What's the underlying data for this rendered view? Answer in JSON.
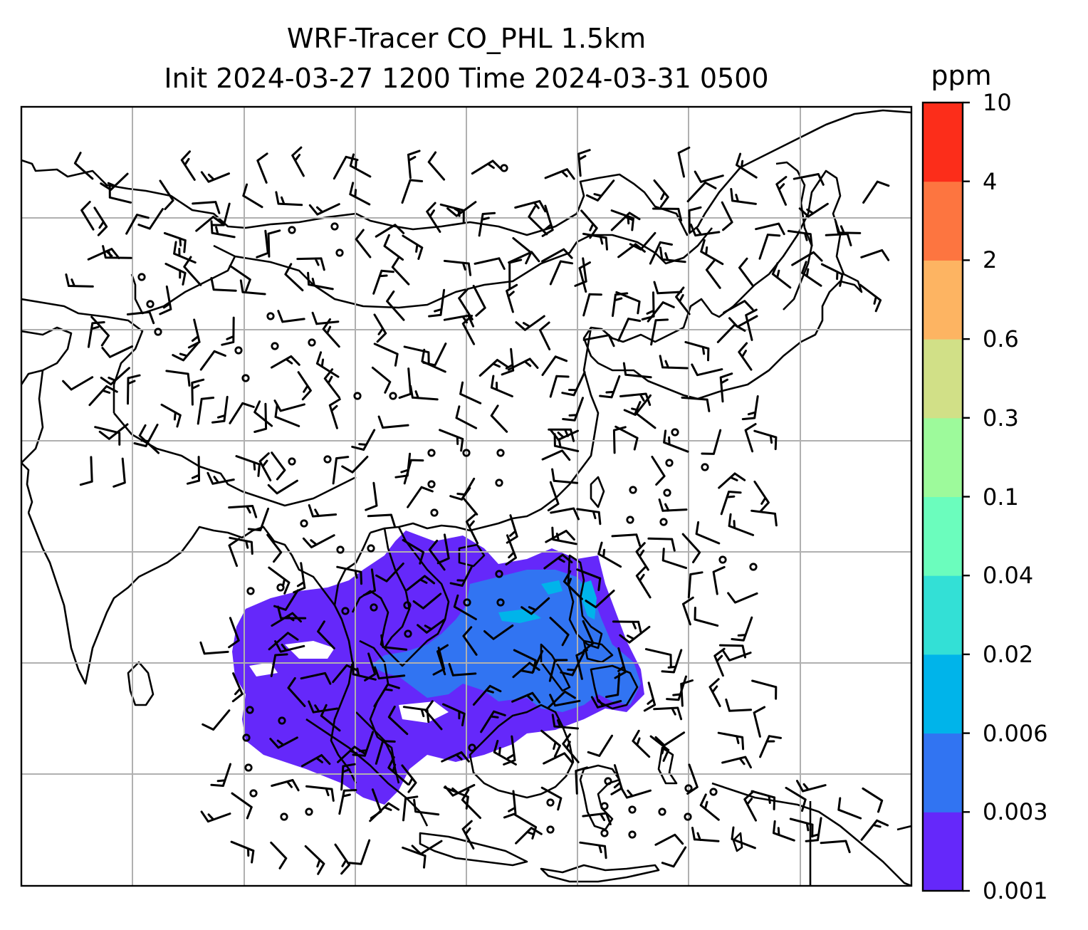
{
  "title": {
    "line1": "WRF-Tracer CO_PHL 1.5km",
    "line2": "Init 2024-03-27 1200 Time 2024-03-31 0500"
  },
  "colorbar": {
    "unit": "ppm",
    "ticks": [
      "0.001",
      "0.003",
      "0.006",
      "0.02",
      "0.04",
      "0.1",
      "0.3",
      "0.6",
      "2",
      "4",
      "10"
    ],
    "colors": [
      "#6528fa",
      "#3174f2",
      "#00b4ea",
      "#33e0d6",
      "#6bfdbd",
      "#9dfa9b",
      "#d1e087",
      "#fdb462",
      "#fd7540",
      "#fc2d1a"
    ]
  },
  "colors": {
    "gridline": "#b0b0b0",
    "coastline": "#000000",
    "wind_barb": "#000000"
  }
}
